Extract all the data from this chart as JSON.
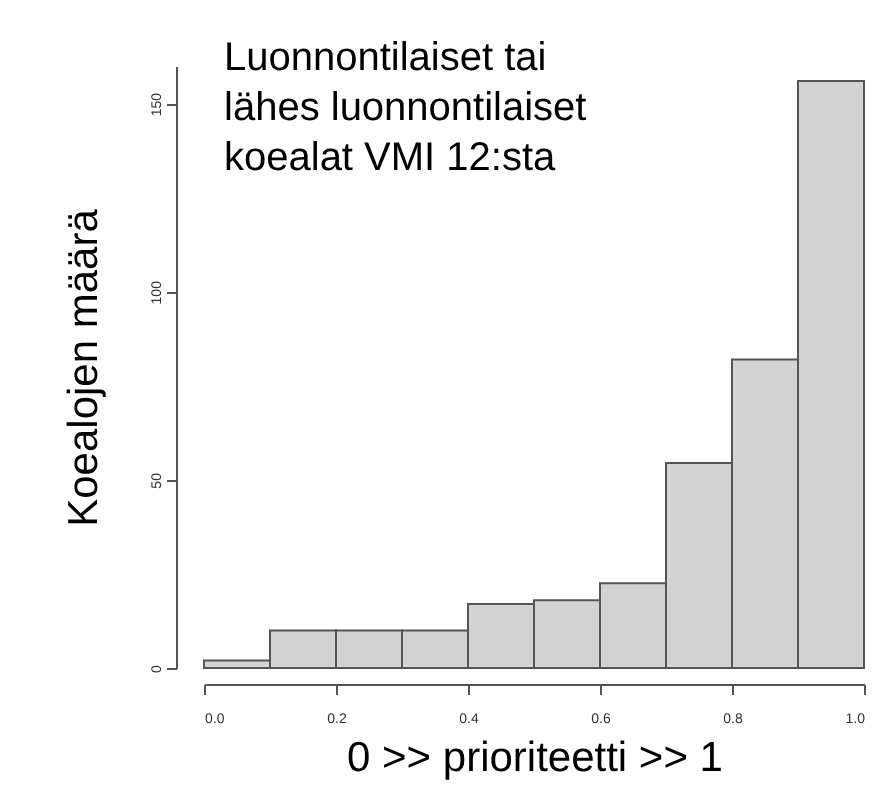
{
  "chart_data": {
    "type": "histogram",
    "title": "Luonnontilaiset tai lähes luonnontilaiset koealat VMI 12:sta",
    "xlabel": "0 >>      prioriteetti      >> 1",
    "ylabel": "Koealojen määrä",
    "bins": [
      0,
      0.1,
      0.2,
      0.3,
      0.4,
      0.5,
      0.6,
      0.7,
      0.8,
      0.9,
      1.0
    ],
    "values": [
      2,
      10,
      10,
      10,
      17,
      18,
      22.5,
      54.5,
      82,
      156
    ],
    "color": "#d3d3d3",
    "xlim": [
      0,
      1
    ],
    "xticks": [
      {
        "value": 0,
        "label": "0.0"
      },
      0.2,
      0.4,
      0.6,
      0.8,
      {
        "value": 1,
        "label": "1.0"
      }
    ],
    "ylim": [
      0,
      160
    ],
    "yticks": [
      0,
      50,
      100,
      150
    ],
    "grid": false
  }
}
